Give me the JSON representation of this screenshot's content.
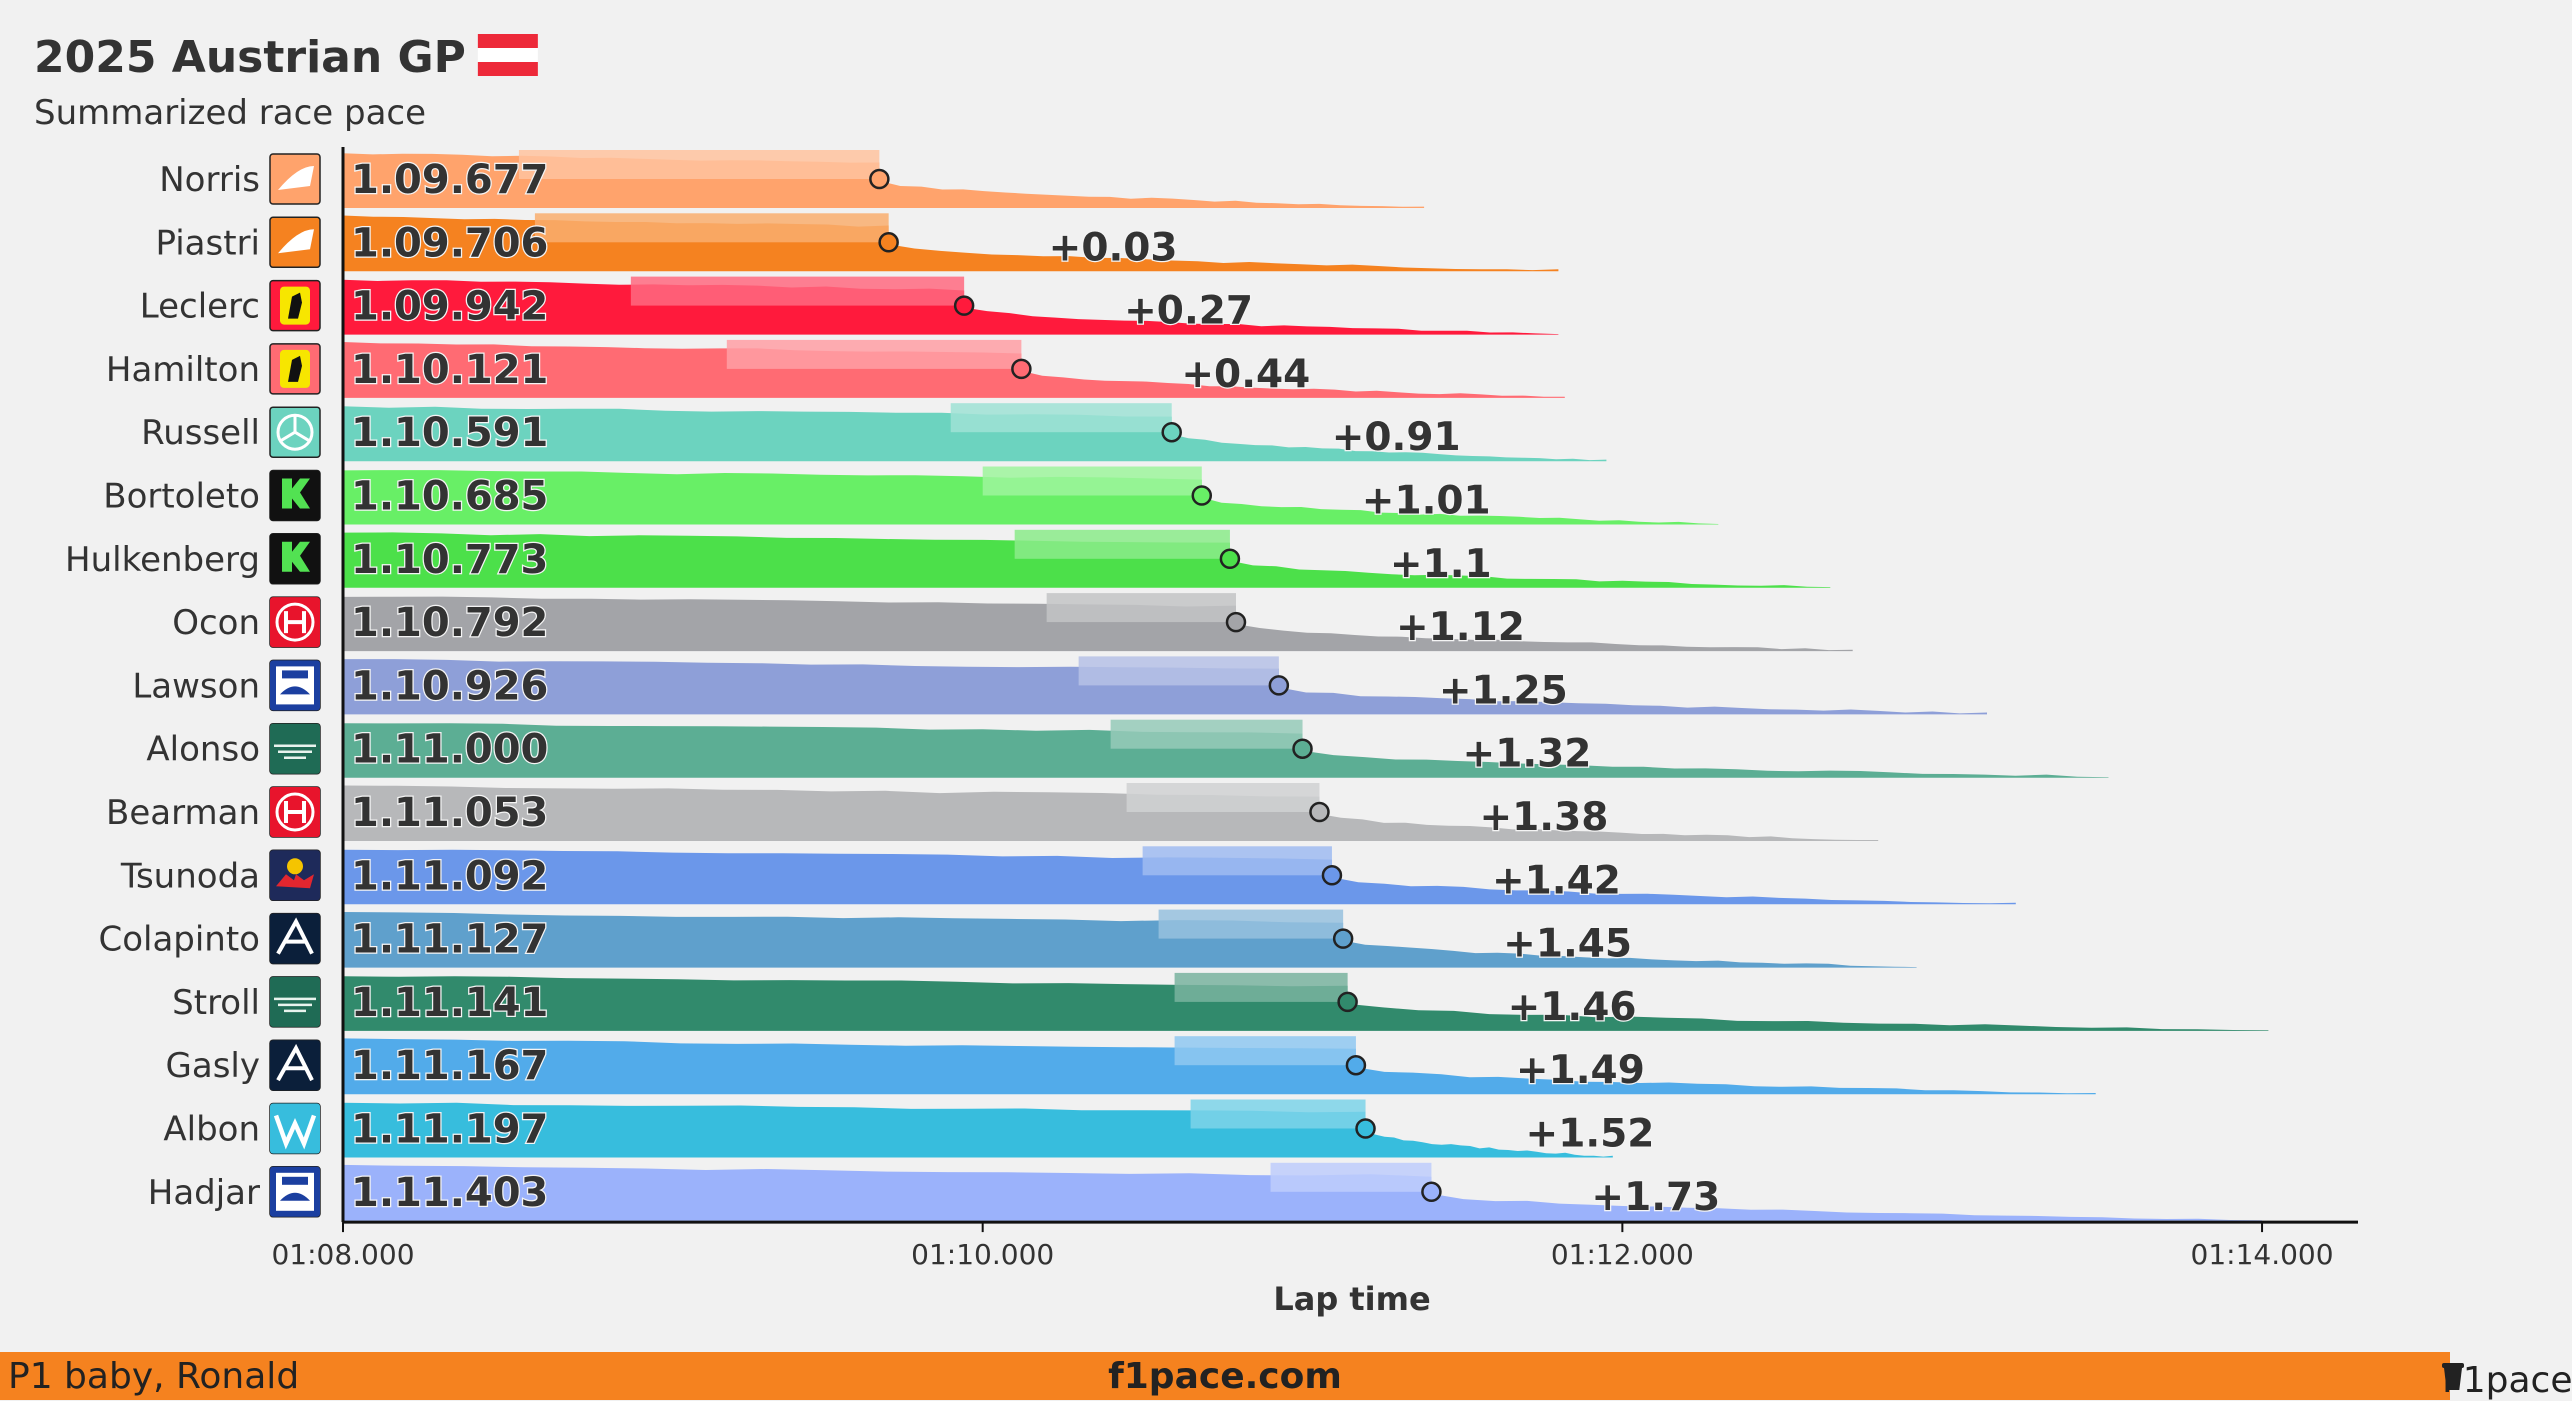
{
  "header": {
    "title": "2025 Austrian GP",
    "subtitle": "Summarized race pace",
    "flag_colors": [
      "#ED2939",
      "#FFFFFF",
      "#ED2939"
    ]
  },
  "footer": {
    "left": "P1 baby, Ronald",
    "center": "f1pace.com",
    "right": "F1pace",
    "background": "#F5821F"
  },
  "chart_data": {
    "type": "bar",
    "xlabel": "Lap time",
    "ylabel": "",
    "xlim": [
      68.0,
      74.3
    ],
    "xticks": [
      {
        "value": 68,
        "label": "01:08.000"
      },
      {
        "value": 70,
        "label": "01:10.000"
      },
      {
        "value": 72,
        "label": "01:12.000"
      },
      {
        "value": 74,
        "label": "01:14.000"
      }
    ],
    "grid": false,
    "legend": "none",
    "drivers": [
      {
        "name": "Norris",
        "team": "McLaren",
        "logo": "mclaren-logo",
        "color": "#FFA36C",
        "median": 69.677,
        "label": "1.09.677",
        "gap": "",
        "q_low": 68.55,
        "q_high": 69.677,
        "max": 71.38
      },
      {
        "name": "Piastri",
        "team": "McLaren",
        "logo": "mclaren-logo",
        "color": "#F58220",
        "median": 69.706,
        "label": "1.09.706",
        "gap": "+0.03",
        "q_low": 68.6,
        "q_high": 69.706,
        "max": 71.8
      },
      {
        "name": "Leclerc",
        "team": "Ferrari",
        "logo": "ferrari-logo",
        "color": "#FF1A3C",
        "median": 69.942,
        "label": "1.09.942",
        "gap": "+0.27",
        "q_low": 68.9,
        "q_high": 69.942,
        "max": 71.8
      },
      {
        "name": "Hamilton",
        "team": "Ferrari",
        "logo": "ferrari-logo",
        "color": "#FF6B73",
        "median": 70.121,
        "label": "1.10.121",
        "gap": "+0.44",
        "q_low": 69.2,
        "q_high": 70.121,
        "max": 71.82
      },
      {
        "name": "Russell",
        "team": "Mercedes",
        "logo": "mercedes-logo",
        "color": "#6CD3BF",
        "median": 70.591,
        "label": "1.10.591",
        "gap": "+0.91",
        "q_low": 69.9,
        "q_high": 70.591,
        "max": 71.95
      },
      {
        "name": "Bortoleto",
        "team": "Kick Sauber",
        "logo": "kick-sauber-logo",
        "color": "#68EF66",
        "median": 70.685,
        "label": "1.10.685",
        "gap": "+1.01",
        "q_low": 70.0,
        "q_high": 70.685,
        "max": 72.3
      },
      {
        "name": "Hulkenberg",
        "team": "Kick Sauber",
        "logo": "kick-sauber-logo",
        "color": "#4CE04A",
        "median": 70.773,
        "label": "1.10.773",
        "gap": "+1.1",
        "q_low": 70.1,
        "q_high": 70.773,
        "max": 72.65
      },
      {
        "name": "Ocon",
        "team": "Haas",
        "logo": "haas-logo",
        "color": "#A3A4A8",
        "median": 70.792,
        "label": "1.10.792",
        "gap": "+1.12",
        "q_low": 70.2,
        "q_high": 70.792,
        "max": 72.72
      },
      {
        "name": "Lawson",
        "team": "Racing Bulls",
        "logo": "racing-bulls-logo",
        "color": "#8E9FD8",
        "median": 70.926,
        "label": "1.10.926",
        "gap": "+1.25",
        "q_low": 70.3,
        "q_high": 70.926,
        "max": 73.14
      },
      {
        "name": "Alonso",
        "team": "Aston Martin",
        "logo": "aston-martin-logo",
        "color": "#5CAE94",
        "median": 71.0,
        "label": "1.11.000",
        "gap": "+1.32",
        "q_low": 70.4,
        "q_high": 71.0,
        "max": 73.52
      },
      {
        "name": "Bearman",
        "team": "Haas",
        "logo": "haas-logo",
        "color": "#B7B8BA",
        "median": 71.053,
        "label": "1.11.053",
        "gap": "+1.38",
        "q_low": 70.45,
        "q_high": 71.053,
        "max": 72.8
      },
      {
        "name": "Tsunoda",
        "team": "Red Bull",
        "logo": "red-bull-logo",
        "color": "#6B97EA",
        "median": 71.092,
        "label": "1.11.092",
        "gap": "+1.42",
        "q_low": 70.5,
        "q_high": 71.092,
        "max": 73.23
      },
      {
        "name": "Colapinto",
        "team": "Alpine",
        "logo": "alpine-logo",
        "color": "#5FA0CC",
        "median": 71.127,
        "label": "1.11.127",
        "gap": "+1.45",
        "q_low": 70.55,
        "q_high": 71.127,
        "max": 72.92
      },
      {
        "name": "Stroll",
        "team": "Aston Martin",
        "logo": "aston-martin-logo",
        "color": "#318A6C",
        "median": 71.141,
        "label": "1.11.141",
        "gap": "+1.46",
        "q_low": 70.6,
        "q_high": 71.141,
        "max": 74.02
      },
      {
        "name": "Gasly",
        "team": "Alpine",
        "logo": "alpine-logo",
        "color": "#52ABEA",
        "median": 71.167,
        "label": "1.11.167",
        "gap": "+1.49",
        "q_low": 70.6,
        "q_high": 71.167,
        "max": 73.48
      },
      {
        "name": "Albon",
        "team": "Williams",
        "logo": "williams-logo",
        "color": "#37BDDD",
        "median": 71.197,
        "label": "1.11.197",
        "gap": "+1.52",
        "q_low": 70.65,
        "q_high": 71.197,
        "max": 71.97,
        "highlight_color": "#E8000E"
      },
      {
        "name": "Hadjar",
        "team": "Racing Bulls",
        "logo": "racing-bulls-logo",
        "color": "#9BB2FB",
        "median": 71.403,
        "label": "1.11.403",
        "gap": "+1.73",
        "q_low": 70.9,
        "q_high": 71.403,
        "max": 74.0
      }
    ]
  }
}
